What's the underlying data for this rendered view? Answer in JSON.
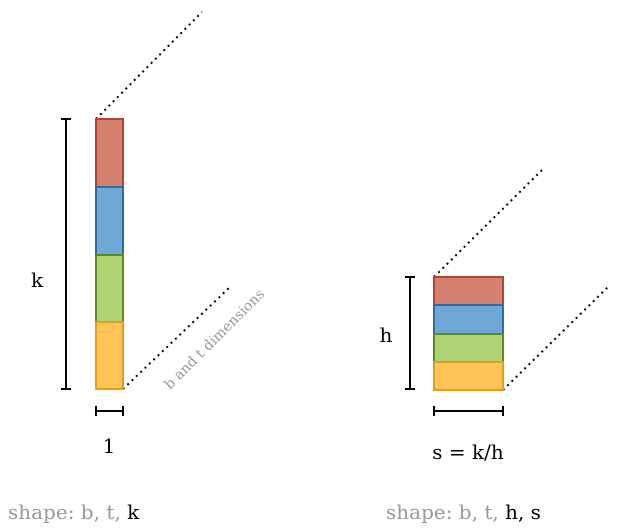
{
  "left": {
    "height_label": "k",
    "width_label": "1",
    "dims_annotation": "b and t dimensions",
    "shape": {
      "prefix": "shape: b, t, ",
      "emphasis": "k"
    }
  },
  "right": {
    "height_label": "h",
    "width_label": "s = k/h",
    "shape": {
      "prefix": "shape: b, t, ",
      "emphasis": "h, s"
    }
  },
  "colors": {
    "red": {
      "fill": "#d4826f",
      "stroke": "#b5432d"
    },
    "blue": {
      "fill": "#6fa8d6",
      "stroke": "#2f6da0"
    },
    "green": {
      "fill": "#aed274",
      "stroke": "#5f8a1d"
    },
    "yellow": {
      "fill": "#ffc455",
      "stroke": "#e69c18"
    }
  }
}
